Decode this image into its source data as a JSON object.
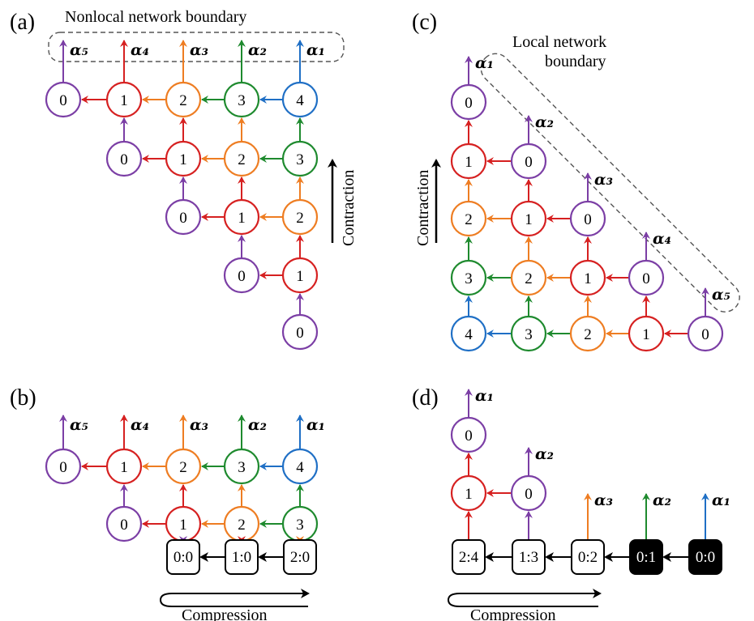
{
  "colors": {
    "blue": "#1f6fc5",
    "green": "#1e8a2e",
    "orange": "#ee7d22",
    "red": "#d62020",
    "purple": "#7b3ea5",
    "black": "#000000",
    "boundary": "#555555"
  },
  "panels": {
    "a": {
      "label": "(a)",
      "boundary_text": "Nonlocal network boundary",
      "arrow_text": "Contraction"
    },
    "b": {
      "label": "(b)",
      "arrow_text": "Compression"
    },
    "c": {
      "label": "(c)",
      "boundary_line1": "Local network",
      "boundary_line2": "boundary",
      "arrow_text": "Contraction"
    },
    "d": {
      "label": "(d)",
      "arrow_text": "Compression"
    }
  },
  "alphas": [
    {
      "label": "α₅"
    },
    {
      "label": "α₄"
    },
    {
      "label": "α₃"
    },
    {
      "label": "α₂"
    },
    {
      "label": "α₁"
    }
  ],
  "panel_a_nodes": [
    [
      "0",
      "1",
      "2",
      "3",
      "4"
    ],
    [
      "0",
      "1",
      "2",
      "3"
    ],
    [
      "0",
      "1",
      "2"
    ],
    [
      "0",
      "1"
    ],
    [
      "0"
    ]
  ],
  "panel_b_nodes": [
    [
      "0",
      "1",
      "2",
      "3",
      "4"
    ],
    [
      "0",
      "1",
      "2",
      "3"
    ]
  ],
  "panel_b_boxes": [
    "0:0",
    "1:0",
    "2:0"
  ],
  "panel_c_nodes": [
    [
      "0"
    ],
    [
      "1",
      "0"
    ],
    [
      "2",
      "1",
      "0"
    ],
    [
      "3",
      "2",
      "1",
      "0"
    ],
    [
      "4",
      "3",
      "2",
      "1",
      "0"
    ]
  ],
  "panel_d_nodes": [
    [
      "0"
    ],
    [
      "1",
      "0"
    ]
  ],
  "panel_d_boxes": [
    {
      "text": "2:4",
      "filled": false
    },
    {
      "text": "1:3",
      "filled": false
    },
    {
      "text": "0:2",
      "filled": false
    },
    {
      "text": "0:1",
      "filled": true
    },
    {
      "text": "0:0",
      "filled": true
    }
  ]
}
